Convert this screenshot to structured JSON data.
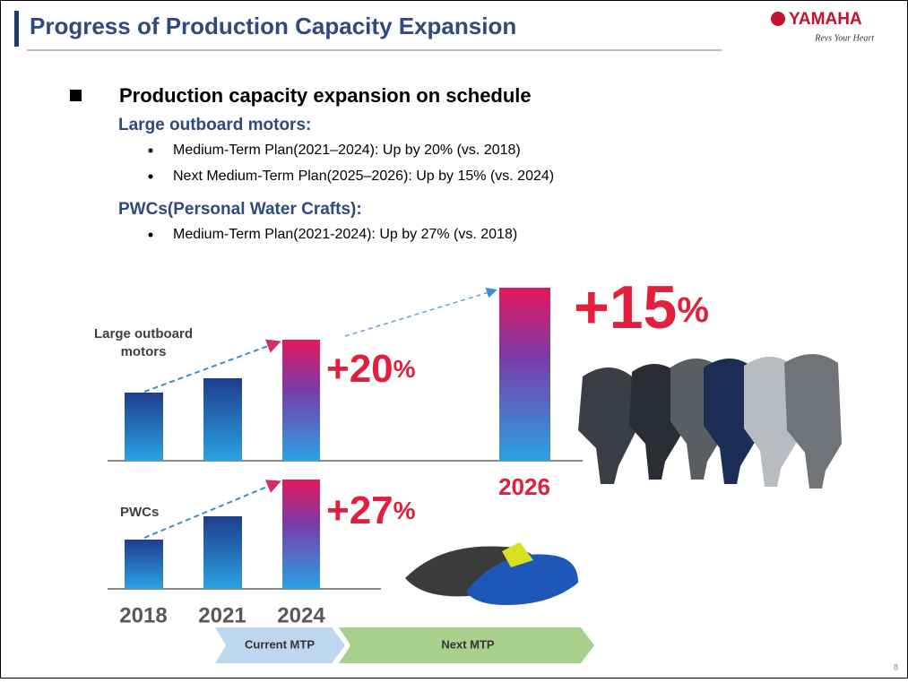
{
  "header": {
    "title": "Progress of Production Capacity Expansion",
    "logo": "YAMAHA",
    "tagline": "Revs Your Heart"
  },
  "body": {
    "heading": "Production capacity expansion on schedule",
    "sections": [
      {
        "title": "Large outboard motors:",
        "items": [
          "Medium-Term Plan(2021–2024): Up by 20% (vs. 2018)",
          "Next Medium-Term Plan(2025–2026): Up by 15% (vs. 2024)"
        ]
      },
      {
        "title": "PWCs(Personal Water Crafts):",
        "items": [
          "Medium-Term Plan(2021-2024): Up by 27% (vs. 2018)"
        ]
      }
    ]
  },
  "diagram": {
    "outboard_label": "Large outboard motors",
    "pwc_label": "PWCs",
    "years": [
      "2018",
      "2021",
      "2024"
    ],
    "future_year": "2026",
    "increase_20": {
      "number": "+20",
      "unit": "%"
    },
    "increase_15": {
      "number": "+15",
      "unit": "%"
    },
    "increase_27": {
      "number": "+27",
      "unit": "%"
    },
    "timeline": [
      "Current MTP",
      "Next MTP"
    ]
  },
  "page_number": "8"
}
